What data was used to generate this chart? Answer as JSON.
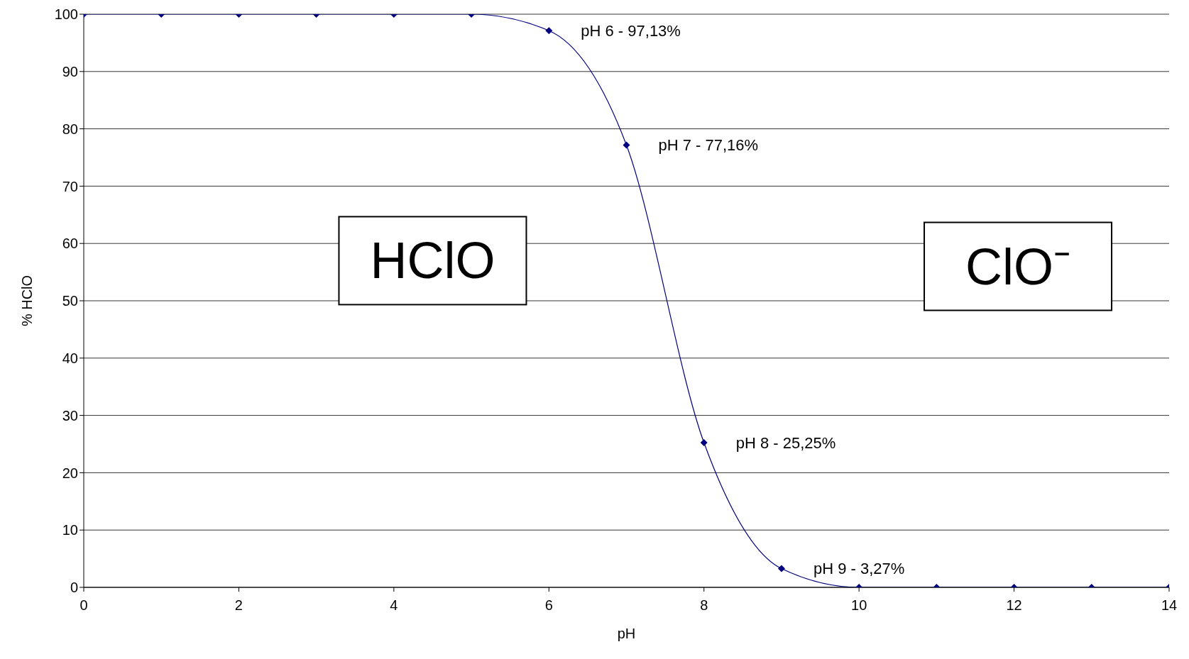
{
  "chart_data": {
    "type": "line",
    "xlabel": "pH",
    "ylabel": "% HClO",
    "x": [
      0,
      1,
      2,
      3,
      4,
      5,
      6,
      7,
      8,
      9,
      10,
      11,
      12,
      13,
      14
    ],
    "series": [
      {
        "color": "#000080",
        "values": [
          100,
          100,
          100,
          100,
          100,
          100,
          97.13,
          77.16,
          25.25,
          3.27,
          0,
          0,
          0,
          0,
          0
        ]
      }
    ],
    "xlim": [
      0,
      14
    ],
    "xticks": [
      0,
      2,
      4,
      6,
      8,
      10,
      12,
      14
    ],
    "ylim": [
      0,
      100
    ],
    "yticks": [
      0,
      10,
      20,
      30,
      40,
      50,
      60,
      70,
      80,
      90,
      100
    ],
    "grid": "y",
    "legend": false,
    "marker": "diamond",
    "line_style": "solid",
    "annotations": [
      {
        "text": "pH 6 - 97,13%",
        "x": 6,
        "y": 97.13
      },
      {
        "text": "pH 7 - 77,16%",
        "x": 7,
        "y": 77.16
      },
      {
        "text": "pH 8 - 25,25%",
        "x": 8,
        "y": 25.25
      },
      {
        "text": "pH 9 - 3,27%",
        "x": 9,
        "y": 3.27
      },
      "HClO",
      "ClO⁻"
    ]
  }
}
